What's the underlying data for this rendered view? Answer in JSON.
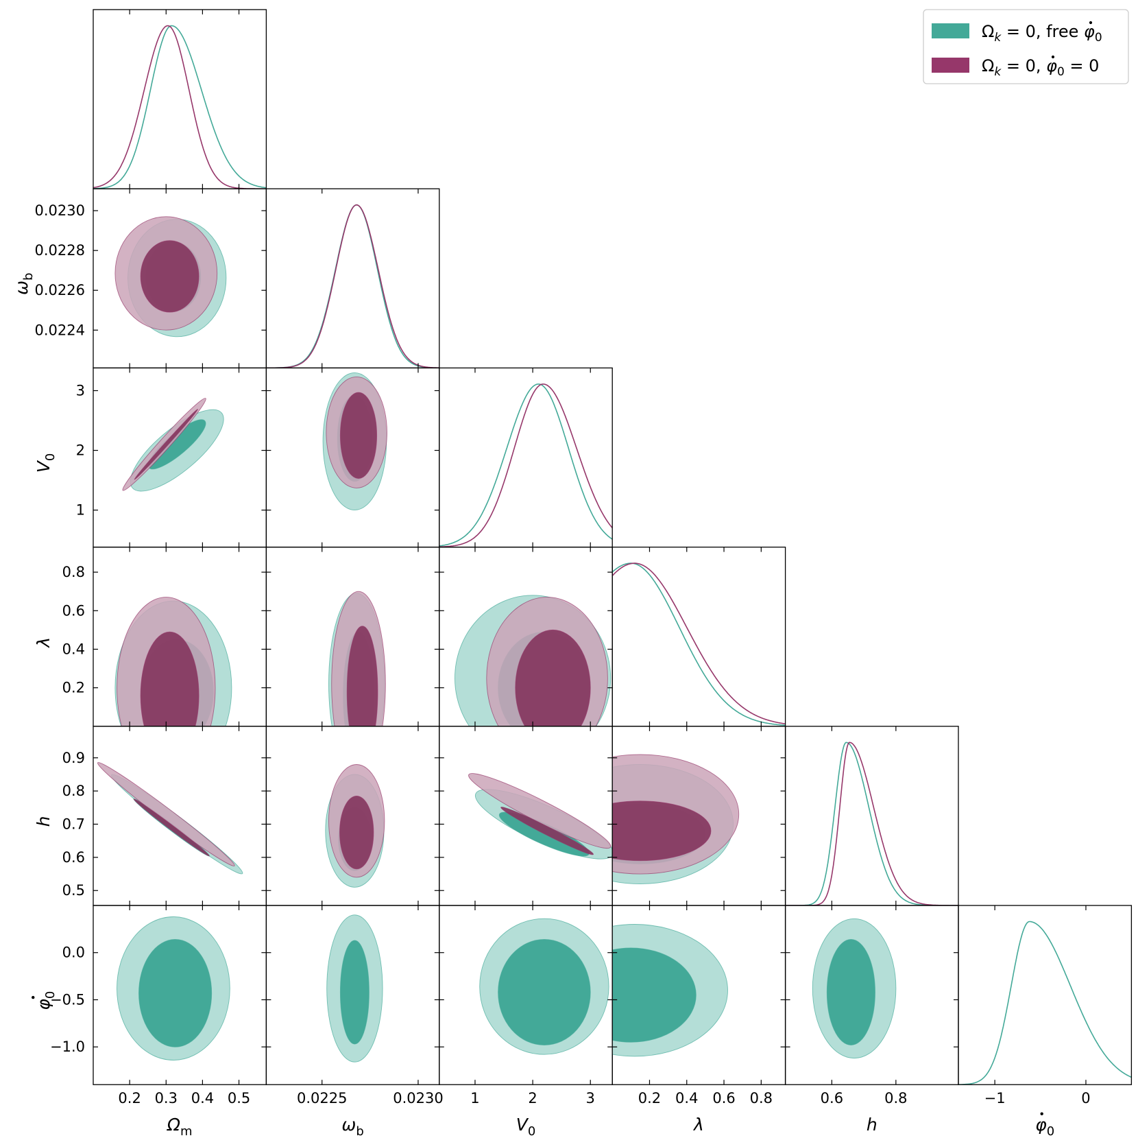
{
  "chart_data": {
    "type": "corner",
    "parameters": [
      {
        "id": "Om",
        "label": "Ω",
        "sub": "m",
        "range": [
          0.1,
          0.575
        ],
        "ticks": [
          "0.2",
          "0.3",
          "0.4",
          "0.5"
        ],
        "tick_values": [
          0.2,
          0.3,
          0.4,
          0.5
        ]
      },
      {
        "id": "wb",
        "label": "ω",
        "sub": "b",
        "range": [
          0.02221,
          0.02311
        ],
        "ticks": [
          "0.0225",
          "0.0230"
        ],
        "tick_values": [
          0.0225,
          0.023
        ],
        "y_ticks": [
          "0.0224",
          "0.0226",
          "0.0228",
          "0.0230"
        ],
        "y_tick_values": [
          0.0224,
          0.0226,
          0.0228,
          0.023
        ]
      },
      {
        "id": "V0",
        "label": "V",
        "sub": "0",
        "range": [
          0.38,
          3.38
        ],
        "ticks": [
          "1",
          "2",
          "3"
        ],
        "tick_values": [
          1,
          2,
          3
        ]
      },
      {
        "id": "lam",
        "label": "λ",
        "sub": "",
        "range": [
          0.0,
          0.93
        ],
        "ticks": [
          "0.2",
          "0.4",
          "0.6",
          "0.8"
        ],
        "tick_values": [
          0.2,
          0.4,
          0.6,
          0.8
        ]
      },
      {
        "id": "h",
        "label": "h",
        "sub": "",
        "range": [
          0.455,
          0.995
        ],
        "ticks": [
          "0.6",
          "0.8"
        ],
        "tick_values": [
          0.6,
          0.8
        ],
        "y_ticks": [
          "0.5",
          "0.6",
          "0.7",
          "0.8",
          "0.9"
        ],
        "y_tick_values": [
          0.5,
          0.6,
          0.7,
          0.8,
          0.9
        ]
      },
      {
        "id": "phid",
        "label": "φ",
        "sub": "0",
        "dot": true,
        "range": [
          -1.4,
          0.5
        ],
        "ticks": [
          "−1",
          "0"
        ],
        "tick_values": [
          -1,
          0
        ],
        "y_ticks": [
          "0.0",
          "−0.5",
          "−1.0"
        ],
        "y_tick_values": [
          0.0,
          -0.5,
          -1.0
        ]
      }
    ],
    "y_ticks_override": {
      "lam": {
        "ticks": [
          "0.2",
          "0.4",
          "0.6",
          "0.8"
        ],
        "values": [
          0.2,
          0.4,
          0.6,
          0.8
        ]
      },
      "V0": {
        "ticks": [
          "1",
          "2",
          "3"
        ],
        "values": [
          1,
          2,
          3
        ]
      }
    },
    "legend_position": "top-right",
    "series": [
      {
        "name": "Ωk = 0, free φ̇0",
        "legend_main": "Ω",
        "legend_sub": "k",
        "legend_rest": " = 0, free ",
        "legend_tail_sym": "φ",
        "legend_tail_sub": "0",
        "legend_tail_eq": "",
        "color": "#43a998",
        "light": "#b4ded7",
        "dark": "#43a998"
      },
      {
        "name": "Ωk = 0, φ̇0 = 0",
        "legend_main": "Ω",
        "legend_sub": "k",
        "legend_rest": " = 0, ",
        "legend_tail_sym": "φ",
        "legend_tail_sub": "0",
        "legend_tail_eq": " = 0",
        "color": "#96376a",
        "light": "#cba4b9",
        "dark": "#843760"
      }
    ],
    "marginals": {
      "Om": [
        {
          "series": 0,
          "mean": 0.315,
          "sd_left": 0.058,
          "sd_right": 0.082
        },
        {
          "series": 1,
          "mean": 0.305,
          "sd_left": 0.065,
          "sd_right": 0.058
        }
      ],
      "wb": [
        {
          "series": 0,
          "mean": 0.02268,
          "sd_left": 0.00011,
          "sd_right": 0.000108
        },
        {
          "series": 1,
          "mean": 0.02268,
          "sd_left": 0.000108,
          "sd_right": 0.000112
        }
      ],
      "V0": [
        {
          "series": 0,
          "mean": 2.1,
          "sd_left": 0.55,
          "sd_right": 0.52
        },
        {
          "series": 1,
          "mean": 2.18,
          "sd_left": 0.5,
          "sd_right": 0.58
        }
      ],
      "lam": [
        {
          "series": 0,
          "mean": 0.1,
          "sd_left": 0.3,
          "sd_right": 0.26
        },
        {
          "series": 1,
          "mean": 0.12,
          "sd_left": 0.3,
          "sd_right": 0.28
        }
      ],
      "h": [
        {
          "series": 0,
          "mean": 0.645,
          "sd_left": 0.035,
          "sd_right": 0.07
        },
        {
          "series": 1,
          "mean": 0.655,
          "sd_left": 0.03,
          "sd_right": 0.075
        }
      ],
      "phid": [
        {
          "series": 0,
          "mean": -0.62,
          "sd_left": 0.2,
          "sd_right": 0.45
        }
      ]
    },
    "contours": [
      {
        "x": "Om",
        "y": "wb",
        "ellipses": [
          {
            "series": 0,
            "cx": 0.33,
            "cy": 0.022662,
            "rx": 0.135,
            "ry": 0.000295,
            "rot": 0,
            "level": 2
          },
          {
            "series": 0,
            "cx": 0.32,
            "cy": 0.022668,
            "rx": 0.075,
            "ry": 0.000175,
            "rot": 0,
            "level": 1
          },
          {
            "series": 1,
            "cx": 0.3,
            "cy": 0.022685,
            "rx": 0.14,
            "ry": 0.000285,
            "rot": 0,
            "level": 2
          },
          {
            "series": 1,
            "cx": 0.31,
            "cy": 0.02267,
            "rx": 0.08,
            "ry": 0.00018,
            "rot": 0,
            "level": 1
          }
        ]
      },
      {
        "x": "wb",
        "y": "V0",
        "ellipses": [
          {
            "series": 0,
            "cx": 0.02267,
            "cy": 2.15,
            "rx": 0.000165,
            "ry": 1.15,
            "rot": 0,
            "level": 2
          },
          {
            "series": 0,
            "cx": 0.02267,
            "cy": 2.2,
            "rx": 9e-05,
            "ry": 0.72,
            "rot": 0,
            "level": 1
          },
          {
            "series": 1,
            "cx": 0.02268,
            "cy": 2.3,
            "rx": 0.000158,
            "ry": 0.93,
            "rot": 0,
            "level": 2
          },
          {
            "series": 1,
            "cx": 0.02269,
            "cy": 2.25,
            "rx": 9.5e-05,
            "ry": 0.72,
            "rot": 0,
            "level": 1
          }
        ]
      },
      {
        "x": "Om",
        "y": "V0",
        "ellipses": [
          {
            "series": 0,
            "cx": 0.33,
            "cy": 2.0,
            "rx": 0.16,
            "ry": 0.35,
            "rot": 40,
            "level": 2
          },
          {
            "series": 0,
            "cx": 0.33,
            "cy": 2.1,
            "rx": 0.1,
            "ry": 0.17,
            "rot": 40,
            "level": 1
          },
          {
            "series": 1,
            "cx": 0.295,
            "cy": 2.1,
            "rx": 0.17,
            "ry": 0.09,
            "rot": 48,
            "level": 2
          },
          {
            "series": 1,
            "cx": 0.3,
            "cy": 2.1,
            "rx": 0.13,
            "ry": 0.03,
            "rot": 48,
            "level": 1
          }
        ]
      },
      {
        "x": "Om",
        "y": "lam",
        "ellipses": [
          {
            "series": 0,
            "cx": 0.32,
            "cy": 0.2,
            "rx": 0.16,
            "ry": 0.45,
            "rot": 0,
            "level": 2
          },
          {
            "series": 0,
            "cx": 0.33,
            "cy": 0.18,
            "rx": 0.1,
            "ry": 0.27,
            "rot": 0,
            "level": 1
          },
          {
            "series": 1,
            "cx": 0.3,
            "cy": 0.2,
            "rx": 0.135,
            "ry": 0.47,
            "rot": 0,
            "level": 2
          },
          {
            "series": 1,
            "cx": 0.31,
            "cy": 0.16,
            "rx": 0.08,
            "ry": 0.33,
            "rot": 0,
            "level": 1
          }
        ]
      },
      {
        "x": "wb",
        "y": "lam",
        "ellipses": [
          {
            "series": 0,
            "cx": 0.02268,
            "cy": 0.22,
            "rx": 0.000145,
            "ry": 0.47,
            "rot": 0,
            "level": 2
          },
          {
            "series": 0,
            "cx": 0.02269,
            "cy": 0.16,
            "rx": 8e-05,
            "ry": 0.33,
            "rot": 0,
            "level": 1
          },
          {
            "series": 1,
            "cx": 0.02269,
            "cy": 0.22,
            "rx": 0.00014,
            "ry": 0.48,
            "rot": 0,
            "level": 2
          },
          {
            "series": 1,
            "cx": 0.02271,
            "cy": 0.18,
            "rx": 8e-05,
            "ry": 0.34,
            "rot": 0,
            "level": 1
          }
        ]
      },
      {
        "x": "V0",
        "y": "lam",
        "ellipses": [
          {
            "series": 0,
            "cx": 2.0,
            "cy": 0.25,
            "rx": 1.35,
            "ry": 0.43,
            "rot": 0,
            "level": 2
          },
          {
            "series": 0,
            "cx": 2.2,
            "cy": 0.2,
            "rx": 0.8,
            "ry": 0.29,
            "rot": 0,
            "level": 1
          },
          {
            "series": 1,
            "cx": 2.25,
            "cy": 0.25,
            "rx": 1.05,
            "ry": 0.42,
            "rot": 0,
            "level": 2
          },
          {
            "series": 1,
            "cx": 2.35,
            "cy": 0.2,
            "rx": 0.65,
            "ry": 0.3,
            "rot": 0,
            "level": 1
          }
        ]
      },
      {
        "x": "Om",
        "y": "h",
        "ellipses": [
          {
            "series": 0,
            "cx": 0.33,
            "cy": 0.7,
            "rx": 0.225,
            "ry": 0.022,
            "rot": -37,
            "level": 2
          },
          {
            "series": 0,
            "cx": 0.315,
            "cy": 0.69,
            "rx": 0.13,
            "ry": 0.009,
            "rot": -37,
            "level": 1
          },
          {
            "series": 1,
            "cx": 0.3,
            "cy": 0.73,
            "rx": 0.235,
            "ry": 0.018,
            "rot": -37,
            "level": 2
          },
          {
            "series": 1,
            "cx": 0.315,
            "cy": 0.69,
            "rx": 0.13,
            "ry": 0.007,
            "rot": -37,
            "level": 1
          }
        ]
      },
      {
        "x": "wb",
        "y": "h",
        "ellipses": [
          {
            "series": 0,
            "cx": 0.02267,
            "cy": 0.68,
            "rx": 0.000152,
            "ry": 0.17,
            "rot": 0,
            "level": 2
          },
          {
            "series": 0,
            "cx": 0.02267,
            "cy": 0.655,
            "rx": 8.5e-05,
            "ry": 0.095,
            "rot": 0,
            "level": 1
          },
          {
            "series": 1,
            "cx": 0.02268,
            "cy": 0.71,
            "rx": 0.000145,
            "ry": 0.17,
            "rot": 0,
            "level": 2
          },
          {
            "series": 1,
            "cx": 0.02268,
            "cy": 0.675,
            "rx": 8.8e-05,
            "ry": 0.11,
            "rot": 0,
            "level": 1
          }
        ]
      },
      {
        "x": "V0",
        "y": "h",
        "ellipses": [
          {
            "series": 0,
            "cx": 2.2,
            "cy": 0.7,
            "rx": 1.3,
            "ry": 0.055,
            "rot": -24,
            "level": 2
          },
          {
            "series": 0,
            "cx": 2.2,
            "cy": 0.67,
            "rx": 0.85,
            "ry": 0.03,
            "rot": -24,
            "level": 1
          },
          {
            "series": 1,
            "cx": 2.12,
            "cy": 0.74,
            "rx": 1.38,
            "ry": 0.032,
            "rot": -27,
            "level": 2
          },
          {
            "series": 1,
            "cx": 2.25,
            "cy": 0.68,
            "rx": 0.9,
            "ry": 0.012,
            "rot": -27,
            "level": 1
          }
        ]
      },
      {
        "x": "lam",
        "y": "h",
        "ellipses": [
          {
            "series": 0,
            "cx": 0.15,
            "cy": 0.7,
            "rx": 0.5,
            "ry": 0.18,
            "rot": 0,
            "level": 2
          },
          {
            "series": 0,
            "cx": 0.15,
            "cy": 0.67,
            "rx": 0.35,
            "ry": 0.09,
            "rot": 0,
            "level": 1
          },
          {
            "series": 1,
            "cx": 0.15,
            "cy": 0.73,
            "rx": 0.53,
            "ry": 0.18,
            "rot": 0,
            "level": 2
          },
          {
            "series": 1,
            "cx": 0.15,
            "cy": 0.68,
            "rx": 0.38,
            "ry": 0.09,
            "rot": 0,
            "level": 1
          }
        ]
      },
      {
        "x": "Om",
        "y": "phid",
        "ellipses": [
          {
            "series": 0,
            "cx": 0.32,
            "cy": -0.38,
            "rx": 0.155,
            "ry": 0.76,
            "rot": 0,
            "level": 2
          },
          {
            "series": 0,
            "cx": 0.325,
            "cy": -0.43,
            "rx": 0.1,
            "ry": 0.57,
            "rot": 0,
            "level": 1
          }
        ]
      },
      {
        "x": "wb",
        "y": "phid",
        "ellipses": [
          {
            "series": 0,
            "cx": 0.02267,
            "cy": -0.38,
            "rx": 0.000145,
            "ry": 0.78,
            "rot": 0,
            "level": 2
          },
          {
            "series": 0,
            "cx": 0.02267,
            "cy": -0.42,
            "rx": 7.5e-05,
            "ry": 0.55,
            "rot": 0,
            "level": 1
          }
        ]
      },
      {
        "x": "V0",
        "y": "phid",
        "ellipses": [
          {
            "series": 0,
            "cx": 2.2,
            "cy": -0.36,
            "rx": 1.12,
            "ry": 0.72,
            "rot": 0,
            "level": 2
          },
          {
            "series": 0,
            "cx": 2.2,
            "cy": -0.42,
            "rx": 0.8,
            "ry": 0.56,
            "rot": 0,
            "level": 1
          }
        ]
      },
      {
        "x": "lam",
        "y": "phid",
        "ellipses": [
          {
            "series": 0,
            "cx": 0.12,
            "cy": -0.4,
            "rx": 0.5,
            "ry": 0.7,
            "rot": 0,
            "level": 2
          },
          {
            "series": 0,
            "cx": 0.1,
            "cy": -0.45,
            "rx": 0.35,
            "ry": 0.5,
            "rot": 0,
            "level": 1
          }
        ]
      },
      {
        "x": "h",
        "y": "phid",
        "ellipses": [
          {
            "series": 0,
            "cx": 0.67,
            "cy": -0.38,
            "rx": 0.13,
            "ry": 0.74,
            "rot": 0,
            "level": 2
          },
          {
            "series": 0,
            "cx": 0.66,
            "cy": -0.42,
            "rx": 0.075,
            "ry": 0.56,
            "rot": 0,
            "level": 1
          }
        ]
      }
    ]
  }
}
